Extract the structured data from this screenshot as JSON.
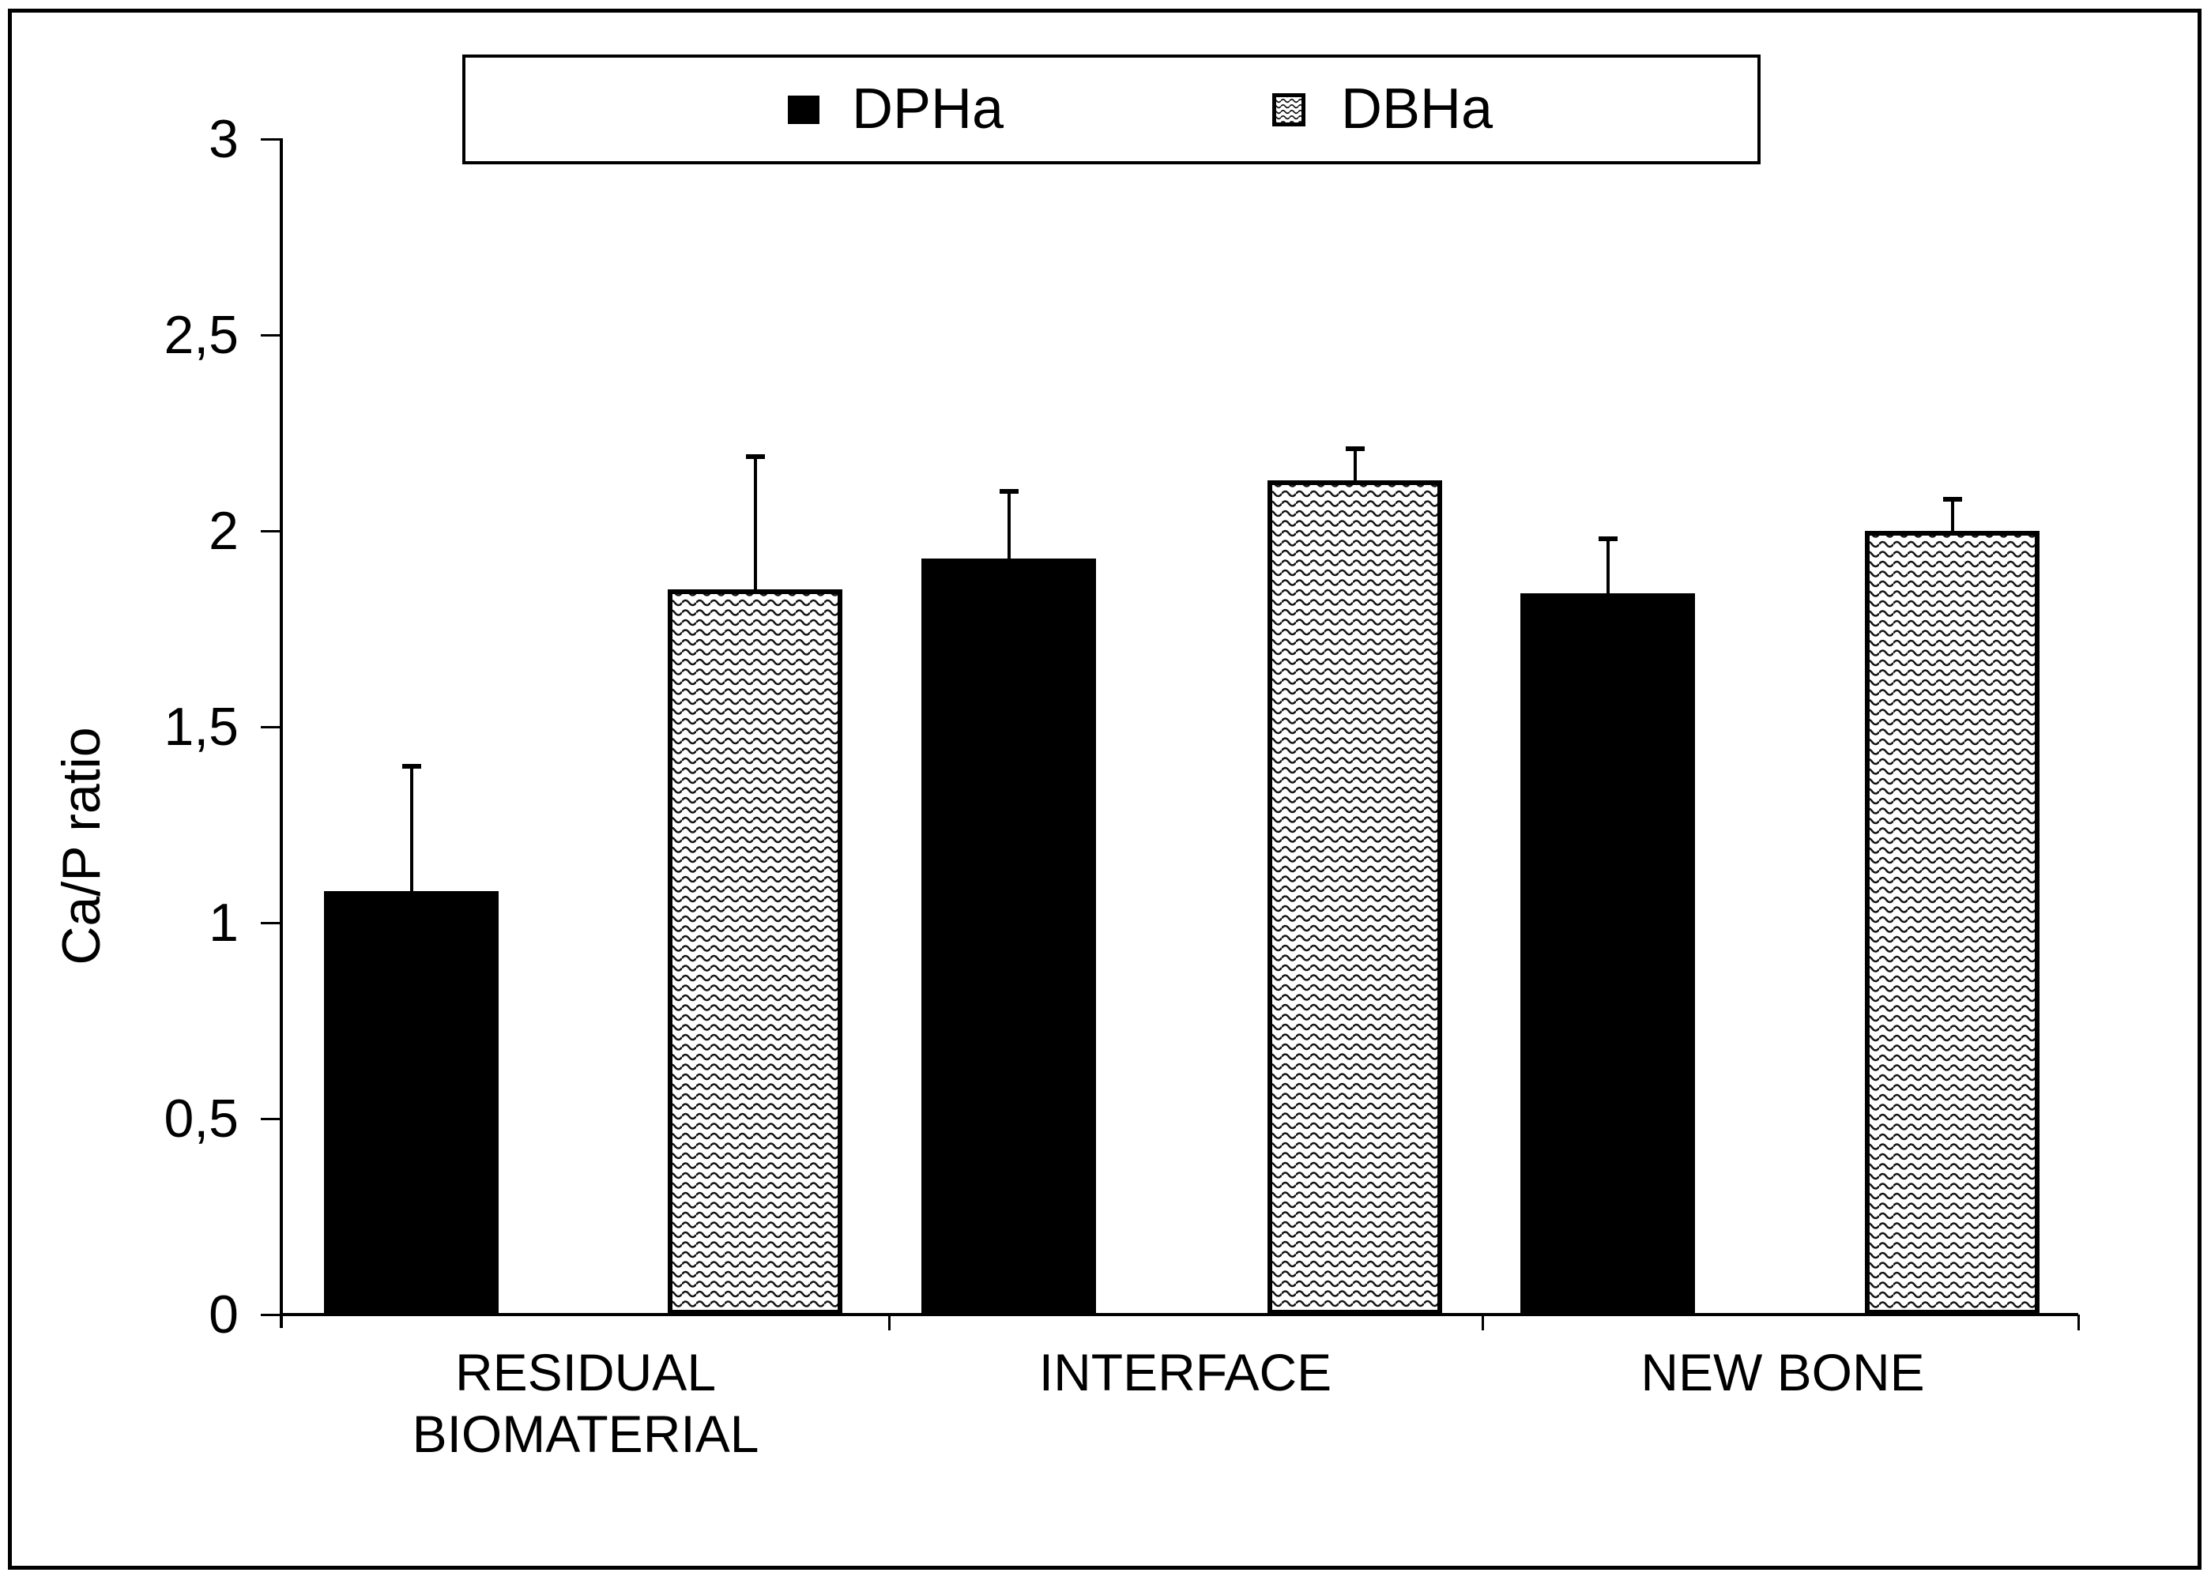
{
  "chart_data": {
    "type": "bar",
    "title": "",
    "ylabel": "Ca/P ratio",
    "xlabel": "",
    "ylim": [
      0,
      3
    ],
    "ytick_values": [
      0,
      0.5,
      1,
      1.5,
      2,
      2.5,
      3
    ],
    "ytick_labels": [
      "0",
      "0,5",
      "1",
      "1,5",
      "2",
      "2,5",
      "3"
    ],
    "decimal_separator": ",",
    "categories": [
      "RESIDUAL BIOMATERIAL",
      "INTERFACE",
      "NEW BONE"
    ],
    "series": [
      {
        "name": "DPHa",
        "style": "solid-black",
        "values": [
          1.08,
          1.93,
          1.84
        ],
        "errors_plus": [
          0.32,
          0.17,
          0.14
        ]
      },
      {
        "name": "DBHa",
        "style": "wave-pattern",
        "values": [
          1.85,
          2.13,
          2.0
        ],
        "errors_plus": [
          0.34,
          0.08,
          0.08
        ]
      }
    ],
    "legend": {
      "position": "top",
      "items": [
        "DPHa",
        "DBHa"
      ]
    },
    "grid": false,
    "error_bars": "upper-only",
    "colors": {
      "foreground": "#000000",
      "background": "#ffffff"
    }
  }
}
